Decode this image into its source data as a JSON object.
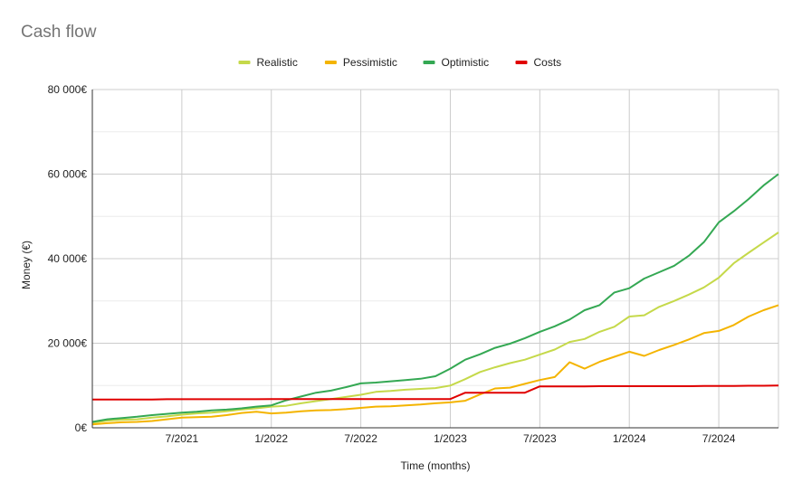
{
  "chart_data": {
    "type": "line",
    "title": "Cash flow",
    "xlabel": "Time (months)",
    "ylabel": "Money (€)",
    "ylim": [
      0,
      80000
    ],
    "yticks": [
      {
        "value": 0,
        "label": "0€"
      },
      {
        "value": 20000,
        "label": "20 000€"
      },
      {
        "value": 40000,
        "label": "40 000€"
      },
      {
        "value": 60000,
        "label": "60 000€"
      },
      {
        "value": 80000,
        "label": "80 000€"
      }
    ],
    "x_range": [
      "2021-01",
      "2024-11"
    ],
    "xticks": [
      {
        "value": "2021-07",
        "label": "7/2021"
      },
      {
        "value": "2022-01",
        "label": "1/2022"
      },
      {
        "value": "2022-07",
        "label": "7/2022"
      },
      {
        "value": "2023-01",
        "label": "1/2023"
      },
      {
        "value": "2023-07",
        "label": "7/2023"
      },
      {
        "value": "2024-01",
        "label": "1/2024"
      },
      {
        "value": "2024-07",
        "label": "7/2024"
      }
    ],
    "grid": true,
    "legend_position": "top",
    "x": [
      "2021-01",
      "2021-02",
      "2021-03",
      "2021-04",
      "2021-05",
      "2021-06",
      "2021-07",
      "2021-08",
      "2021-09",
      "2021-10",
      "2021-11",
      "2021-12",
      "2022-01",
      "2022-02",
      "2022-03",
      "2022-04",
      "2022-05",
      "2022-06",
      "2022-07",
      "2022-08",
      "2022-09",
      "2022-10",
      "2022-11",
      "2022-12",
      "2023-01",
      "2023-02",
      "2023-03",
      "2023-04",
      "2023-05",
      "2023-06",
      "2023-07",
      "2023-08",
      "2023-09",
      "2023-10",
      "2023-11",
      "2023-12",
      "2024-01",
      "2024-02",
      "2024-03",
      "2024-04",
      "2024-05",
      "2024-06",
      "2024-07",
      "2024-08",
      "2024-09",
      "2024-10",
      "2024-11"
    ],
    "series": [
      {
        "name": "Realistic",
        "color": "#c5d94a",
        "values": [
          1200,
          1700,
          1900,
          2000,
          2400,
          2700,
          3100,
          3400,
          3600,
          3900,
          4300,
          4600,
          5000,
          5200,
          5800,
          6300,
          6800,
          7300,
          7800,
          8500,
          8700,
          9000,
          9200,
          9400,
          10000,
          11500,
          13200,
          14300,
          15300,
          16100,
          17300,
          18500,
          20300,
          21000,
          22700,
          23900,
          26300,
          26600,
          28600,
          30000,
          31500,
          33200,
          35500,
          38900,
          41400,
          43800,
          46200
        ]
      },
      {
        "name": "Pessimistic",
        "color": "#f4b400",
        "values": [
          800,
          1100,
          1300,
          1400,
          1600,
          2000,
          2400,
          2500,
          2600,
          3000,
          3500,
          3800,
          3400,
          3600,
          3900,
          4100,
          4200,
          4400,
          4700,
          5000,
          5100,
          5300,
          5500,
          5800,
          6000,
          6400,
          7900,
          9300,
          9500,
          10400,
          11300,
          12000,
          15500,
          14000,
          15600,
          16800,
          18000,
          17000,
          18400,
          19600,
          20900,
          22400,
          22900,
          24300,
          26300,
          27800,
          29000
        ]
      },
      {
        "name": "Optimistic",
        "color": "#34a853",
        "values": [
          1400,
          2000,
          2300,
          2600,
          3000,
          3300,
          3600,
          3800,
          4100,
          4300,
          4600,
          5000,
          5300,
          6500,
          7400,
          8300,
          8800,
          9600,
          10500,
          10700,
          11000,
          11300,
          11600,
          12200,
          14000,
          16100,
          17400,
          18900,
          19900,
          21200,
          22700,
          24000,
          25600,
          27800,
          29000,
          32000,
          33000,
          35300,
          36800,
          38300,
          40700,
          43900,
          48600,
          51200,
          54100,
          57300,
          60000
        ]
      },
      {
        "name": "Costs",
        "color": "#e00000",
        "values": [
          6700,
          6700,
          6700,
          6700,
          6700,
          6750,
          6750,
          6750,
          6750,
          6750,
          6750,
          6750,
          6800,
          6800,
          6800,
          6800,
          6800,
          6800,
          6800,
          6800,
          6800,
          6800,
          6800,
          6800,
          6800,
          8300,
          8300,
          8300,
          8300,
          8300,
          9800,
          9800,
          9800,
          9800,
          9850,
          9850,
          9850,
          9850,
          9850,
          9850,
          9850,
          9900,
          9900,
          9900,
          9950,
          9950,
          10000
        ]
      }
    ]
  }
}
